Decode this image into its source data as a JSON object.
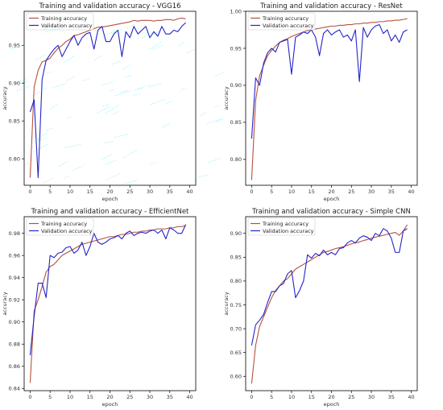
{
  "colors": {
    "training": "#b5533c",
    "validation": "#2424c8",
    "axis": "#000000",
    "noise": "#00d8ff"
  },
  "chart_data": [
    {
      "type": "line",
      "title": "Training and validation accuracy - VGG16",
      "xlabel": "epoch",
      "ylabel": "accuracy",
      "xlim": [
        -1.5,
        41.5
      ],
      "ylim": [
        0.765,
        0.995
      ],
      "xticks": [
        0,
        5,
        10,
        15,
        20,
        25,
        30,
        35,
        40
      ],
      "yticks": [
        0.8,
        0.85,
        0.9,
        0.95
      ],
      "ytick_labels": [
        "0.80",
        "0.85",
        "0.90",
        "0.95"
      ],
      "legend": "upper-left",
      "x": [
        0,
        1,
        2,
        3,
        4,
        5,
        6,
        7,
        8,
        9,
        10,
        11,
        12,
        13,
        14,
        15,
        16,
        17,
        18,
        19,
        20,
        21,
        22,
        23,
        24,
        25,
        26,
        27,
        28,
        29,
        30,
        31,
        32,
        33,
        34,
        35,
        36,
        37,
        38,
        39
      ],
      "series": [
        {
          "name": "Training accuracy",
          "values": [
            0.775,
            0.895,
            0.917,
            0.928,
            0.93,
            0.933,
            0.94,
            0.946,
            0.95,
            0.955,
            0.958,
            0.963,
            0.964,
            0.966,
            0.968,
            0.97,
            0.972,
            0.974,
            0.974,
            0.975,
            0.976,
            0.977,
            0.978,
            0.979,
            0.98,
            0.981,
            0.983,
            0.982,
            0.983,
            0.983,
            0.983,
            0.982,
            0.983,
            0.983,
            0.984,
            0.984,
            0.983,
            0.985,
            0.986,
            0.985
          ]
        },
        {
          "name": "Validation accuracy",
          "values": [
            0.862,
            0.878,
            0.775,
            0.905,
            0.93,
            0.938,
            0.945,
            0.95,
            0.935,
            0.945,
            0.955,
            0.963,
            0.95,
            0.96,
            0.965,
            0.967,
            0.945,
            0.97,
            0.975,
            0.955,
            0.955,
            0.965,
            0.97,
            0.935,
            0.968,
            0.96,
            0.975,
            0.965,
            0.97,
            0.975,
            0.96,
            0.968,
            0.962,
            0.975,
            0.965,
            0.965,
            0.97,
            0.968,
            0.975,
            0.98
          ]
        }
      ]
    },
    {
      "type": "line",
      "title": "Training and validation accuracy - ResNet",
      "xlabel": "epoch",
      "ylabel": "accuracy",
      "xlim": [
        -1.5,
        41.5
      ],
      "ylim": [
        0.765,
        1.0
      ],
      "xticks": [
        0,
        5,
        10,
        15,
        20,
        25,
        30,
        35,
        40
      ],
      "yticks": [
        0.8,
        0.85,
        0.9,
        0.95,
        1.0
      ],
      "ytick_labels": [
        "0.80",
        "0.85",
        "0.90",
        "0.95",
        "1.00"
      ],
      "legend": "upper-left",
      "x": [
        0,
        1,
        2,
        3,
        4,
        5,
        6,
        7,
        8,
        9,
        10,
        11,
        12,
        13,
        14,
        15,
        16,
        17,
        18,
        19,
        20,
        21,
        22,
        23,
        24,
        25,
        26,
        27,
        28,
        29,
        30,
        31,
        32,
        33,
        34,
        35,
        36,
        37,
        38,
        39
      ],
      "series": [
        {
          "name": "Training accuracy",
          "values": [
            0.772,
            0.88,
            0.913,
            0.927,
            0.94,
            0.947,
            0.953,
            0.958,
            0.961,
            0.963,
            0.966,
            0.968,
            0.97,
            0.972,
            0.974,
            0.975,
            0.976,
            0.977,
            0.978,
            0.979,
            0.98,
            0.98,
            0.981,
            0.981,
            0.982,
            0.982,
            0.983,
            0.983,
            0.984,
            0.984,
            0.985,
            0.985,
            0.986,
            0.986,
            0.987,
            0.987,
            0.988,
            0.988,
            0.989,
            0.99
          ]
        },
        {
          "name": "Validation accuracy",
          "values": [
            0.828,
            0.91,
            0.9,
            0.93,
            0.944,
            0.95,
            0.945,
            0.958,
            0.96,
            0.962,
            0.915,
            0.965,
            0.968,
            0.972,
            0.97,
            0.975,
            0.965,
            0.94,
            0.97,
            0.975,
            0.968,
            0.972,
            0.975,
            0.965,
            0.968,
            0.96,
            0.975,
            0.905,
            0.978,
            0.965,
            0.975,
            0.98,
            0.982,
            0.97,
            0.975,
            0.96,
            0.968,
            0.958,
            0.972,
            0.975
          ]
        }
      ]
    },
    {
      "type": "line",
      "title": "Training and validation accuracy - EfficientNet",
      "xlabel": "epoch",
      "ylabel": "accuracy",
      "xlim": [
        -1.5,
        41.5
      ],
      "ylim": [
        0.838,
        0.995
      ],
      "xticks": [
        0,
        5,
        10,
        15,
        20,
        25,
        30,
        35,
        40
      ],
      "yticks": [
        0.84,
        0.86,
        0.88,
        0.9,
        0.92,
        0.94,
        0.96,
        0.98
      ],
      "ytick_labels": [
        "0.84",
        "0.86",
        "0.88",
        "0.90",
        "0.92",
        "0.94",
        "0.96",
        "0.98"
      ],
      "legend": "upper-left",
      "x": [
        0,
        1,
        2,
        3,
        4,
        5,
        6,
        7,
        8,
        9,
        10,
        11,
        12,
        13,
        14,
        15,
        16,
        17,
        18,
        19,
        20,
        21,
        22,
        23,
        24,
        25,
        26,
        27,
        28,
        29,
        30,
        31,
        32,
        33,
        34,
        35,
        36,
        37,
        38,
        39
      ],
      "series": [
        {
          "name": "Training accuracy",
          "values": [
            0.845,
            0.91,
            0.92,
            0.932,
            0.945,
            0.95,
            0.952,
            0.956,
            0.96,
            0.962,
            0.964,
            0.966,
            0.968,
            0.97,
            0.971,
            0.972,
            0.973,
            0.974,
            0.975,
            0.976,
            0.977,
            0.977,
            0.978,
            0.979,
            0.979,
            0.98,
            0.981,
            0.981,
            0.982,
            0.982,
            0.983,
            0.983,
            0.984,
            0.984,
            0.984,
            0.985,
            0.985,
            0.986,
            0.986,
            0.987
          ]
        },
        {
          "name": "Validation accuracy",
          "values": [
            0.87,
            0.905,
            0.935,
            0.935,
            0.922,
            0.96,
            0.958,
            0.962,
            0.963,
            0.967,
            0.968,
            0.962,
            0.965,
            0.972,
            0.96,
            0.968,
            0.98,
            0.972,
            0.97,
            0.972,
            0.975,
            0.976,
            0.978,
            0.975,
            0.98,
            0.982,
            0.978,
            0.98,
            0.981,
            0.98,
            0.982,
            0.983,
            0.98,
            0.983,
            0.975,
            0.985,
            0.983,
            0.98,
            0.98,
            0.988
          ]
        }
      ]
    },
    {
      "type": "line",
      "title": "Training and validation accuracy - Simple CNN",
      "xlabel": "epoch",
      "ylabel": "accuracy",
      "xlim": [
        -1.5,
        41.5
      ],
      "ylim": [
        0.57,
        0.935
      ],
      "xticks": [
        0,
        5,
        10,
        15,
        20,
        25,
        30,
        35,
        40
      ],
      "yticks": [
        0.6,
        0.65,
        0.7,
        0.75,
        0.8,
        0.85,
        0.9
      ],
      "ytick_labels": [
        "0.60",
        "0.65",
        "0.70",
        "0.75",
        "0.80",
        "0.85",
        "0.90"
      ],
      "legend": "upper-left",
      "x": [
        0,
        1,
        2,
        3,
        4,
        5,
        6,
        7,
        8,
        9,
        10,
        11,
        12,
        13,
        14,
        15,
        16,
        17,
        18,
        19,
        20,
        21,
        22,
        23,
        24,
        25,
        26,
        27,
        28,
        29,
        30,
        31,
        32,
        33,
        34,
        35,
        36,
        37,
        38,
        39
      ],
      "series": [
        {
          "name": "Training accuracy",
          "values": [
            0.585,
            0.665,
            0.705,
            0.725,
            0.745,
            0.765,
            0.78,
            0.79,
            0.8,
            0.805,
            0.815,
            0.825,
            0.83,
            0.835,
            0.84,
            0.845,
            0.85,
            0.855,
            0.86,
            0.862,
            0.865,
            0.868,
            0.87,
            0.872,
            0.875,
            0.878,
            0.88,
            0.882,
            0.885,
            0.887,
            0.89,
            0.892,
            0.894,
            0.896,
            0.898,
            0.9,
            0.902,
            0.896,
            0.905,
            0.918
          ]
        },
        {
          "name": "Validation accuracy",
          "values": [
            0.665,
            0.708,
            0.718,
            0.73,
            0.755,
            0.778,
            0.778,
            0.79,
            0.795,
            0.815,
            0.822,
            0.765,
            0.78,
            0.8,
            0.855,
            0.848,
            0.858,
            0.853,
            0.865,
            0.855,
            0.86,
            0.855,
            0.868,
            0.87,
            0.88,
            0.885,
            0.88,
            0.89,
            0.895,
            0.892,
            0.885,
            0.9,
            0.895,
            0.91,
            0.905,
            0.89,
            0.86,
            0.86,
            0.905,
            0.91
          ]
        }
      ]
    }
  ]
}
